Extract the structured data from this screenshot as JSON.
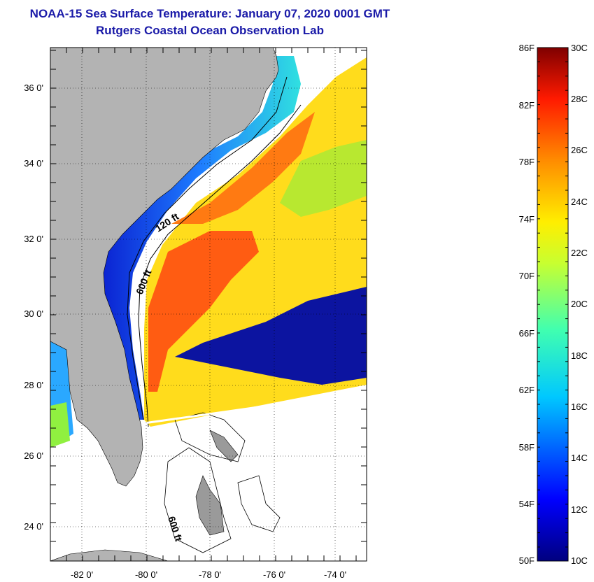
{
  "header": {
    "title": "NOAA-15 Sea Surface Temperature:  January 07, 2020 0001 GMT",
    "subtitle": "Rutgers Coastal Ocean Observation Lab"
  },
  "map": {
    "lat_labels": [
      "36 0'",
      "34 0'",
      "32 0'",
      "30 0'",
      "28 0'",
      "26 0'",
      "24 0'"
    ],
    "lon_labels": [
      "-82 0'",
      "-80 0'",
      "-78 0'",
      "-76 0'",
      "-74 0'"
    ],
    "contour_labels": {
      "c120": "120 ft",
      "c600a": "600 ft",
      "c600b": "600 ft"
    },
    "colors": {
      "land": "#b3b3b3",
      "cold": "#0c0c9c",
      "warm": "#ff5a10",
      "mid": "#ffe21c",
      "background": "#ffffff"
    }
  },
  "colorbar": {
    "fahrenheit": [
      "86F",
      "82F",
      "78F",
      "74F",
      "70F",
      "66F",
      "62F",
      "58F",
      "54F",
      "50F"
    ],
    "celsius": [
      "30C",
      "28C",
      "26C",
      "24C",
      "22C",
      "20C",
      "18C",
      "16C",
      "14C",
      "12C",
      "10C"
    ],
    "range_c": [
      10,
      30
    ],
    "range_f": [
      50,
      86
    ]
  }
}
